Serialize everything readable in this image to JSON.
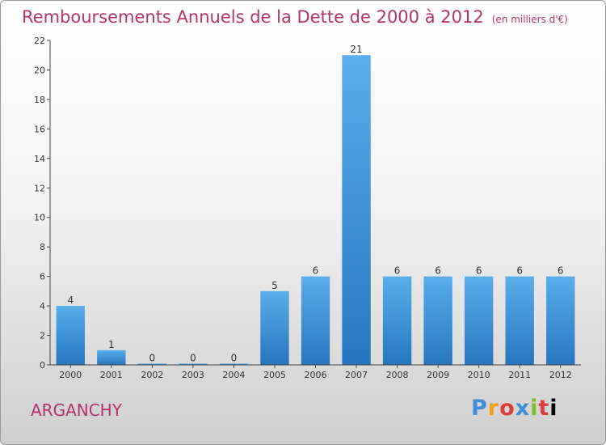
{
  "chart_data": {
    "type": "bar",
    "title": "Remboursements Annuels de la Dette de 2000 à 2012",
    "unit": "(en milliers d'€)",
    "categories": [
      "2000",
      "2001",
      "2002",
      "2003",
      "2004",
      "2005",
      "2006",
      "2007",
      "2008",
      "2009",
      "2010",
      "2011",
      "2012"
    ],
    "values": [
      4,
      1,
      0,
      0,
      0,
      5,
      6,
      21,
      6,
      6,
      6,
      6,
      6
    ],
    "ylim": [
      0,
      22
    ],
    "yticks": [
      0,
      2,
      4,
      6,
      8,
      10,
      12,
      14,
      16,
      18,
      20,
      22
    ],
    "grid": false,
    "bar_color": "#3d94dc"
  },
  "footer": {
    "commune": "ARGANCHY",
    "brand": "Proxiti"
  }
}
